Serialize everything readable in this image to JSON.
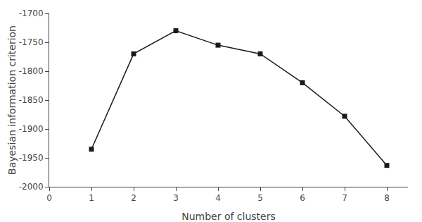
{
  "chart_data": {
    "type": "line",
    "x": [
      1,
      2,
      3,
      4,
      5,
      6,
      7,
      8
    ],
    "values": [
      -1935,
      -1770,
      -1730,
      -1755,
      -1770,
      -1820,
      -1878,
      -1963
    ],
    "xlabel": "Number of clusters",
    "ylabel": "Bayesian information criterion",
    "xlim": [
      0,
      8.5
    ],
    "ylim": [
      -2000,
      -1700
    ],
    "xticks": [
      0,
      1,
      2,
      3,
      4,
      5,
      6,
      7,
      8
    ],
    "yticks": [
      -2000,
      -1950,
      -1900,
      -1850,
      -1800,
      -1750,
      -1700
    ],
    "color": "#1a1a1a",
    "marker": "square",
    "line_style": "solid",
    "grid": false
  }
}
